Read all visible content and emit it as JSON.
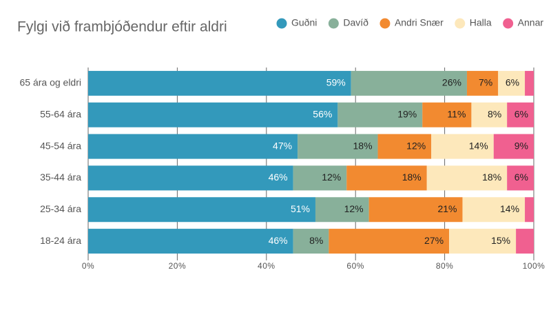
{
  "chart_data": {
    "type": "stacked-bar-horizontal",
    "title": "Fylgi við frambjóðendur eftir aldri",
    "categories": [
      "65 ára og eldri",
      "55-64 ára",
      "45-54 ára",
      "35-44 ára",
      "25-34 ára",
      "18-24 ára"
    ],
    "series": [
      {
        "name": "Guðni",
        "color": "#3399bb",
        "values": [
          59,
          56,
          47,
          46,
          51,
          46
        ],
        "value_labels": [
          "59%",
          "56%",
          "47%",
          "46%",
          "51%",
          "46%"
        ]
      },
      {
        "name": "Davíð",
        "color": "#88b09a",
        "values": [
          26,
          19,
          18,
          12,
          12,
          8
        ],
        "value_labels": [
          "26%",
          "19%",
          "18%",
          "12%",
          "12%",
          "8%"
        ]
      },
      {
        "name": "Andri Snær",
        "color": "#f28a30",
        "values": [
          7,
          11,
          12,
          18,
          21,
          27
        ],
        "value_labels": [
          "7%",
          "11%",
          "12%",
          "18%",
          "21%",
          "27%"
        ]
      },
      {
        "name": "Halla",
        "color": "#fde8bb",
        "values": [
          6,
          8,
          14,
          18,
          14,
          15
        ],
        "value_labels": [
          "6%",
          "8%",
          "14%",
          "18%",
          "14%",
          "15%"
        ]
      },
      {
        "name": "Annar",
        "color": "#f06090",
        "values": [
          2,
          6,
          9,
          6,
          2,
          4
        ],
        "value_labels": [
          null,
          "6%",
          "9%",
          "6%",
          null,
          null
        ]
      }
    ],
    "xlim": [
      0,
      100
    ],
    "xticks": [
      {
        "value": 0,
        "label": "0%"
      },
      {
        "value": 20,
        "label": "20%"
      },
      {
        "value": 40,
        "label": "40%"
      },
      {
        "value": 60,
        "label": "60%"
      },
      {
        "value": 80,
        "label": "80%"
      },
      {
        "value": 100,
        "label": "100%"
      }
    ],
    "grid": true,
    "legend": "top-right"
  }
}
